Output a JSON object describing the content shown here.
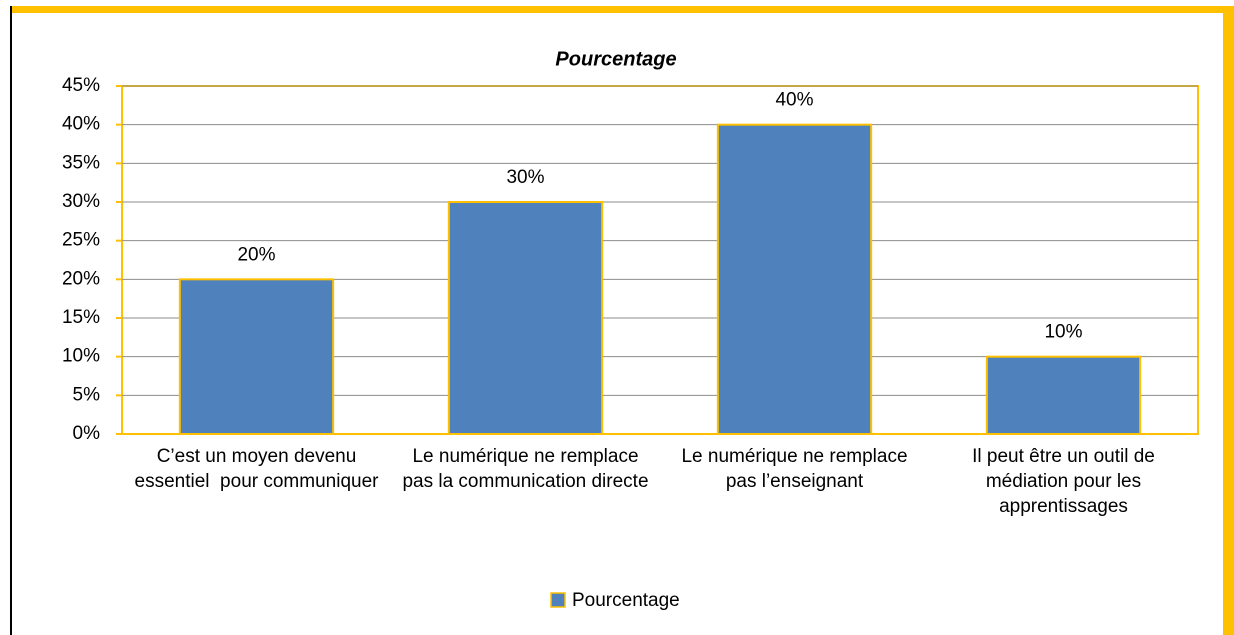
{
  "chart_data": {
    "type": "bar",
    "title": "Pourcentage",
    "categories": [
      "C’est un moyen devenu essentiel  pour communiquer",
      "Le numérique ne remplace pas la communication directe",
      "Le numérique ne remplace pas l’enseignant",
      "Il peut être un outil de médiation pour les apprentissages"
    ],
    "series": [
      {
        "name": "Pourcentage",
        "color": "#4f81bd",
        "values": [
          20,
          30,
          40,
          10
        ],
        "value_labels": [
          "20%",
          "30%",
          "40%",
          "10%"
        ]
      }
    ],
    "ylim": [
      0,
      45
    ],
    "yticks": [
      {
        "value": 0,
        "label": "0%"
      },
      {
        "value": 5,
        "label": "5%"
      },
      {
        "value": 10,
        "label": "10%"
      },
      {
        "value": 15,
        "label": "15%"
      },
      {
        "value": 20,
        "label": "20%"
      },
      {
        "value": 25,
        "label": "25%"
      },
      {
        "value": 30,
        "label": "30%"
      },
      {
        "value": 35,
        "label": "35%"
      },
      {
        "value": 40,
        "label": "40%"
      },
      {
        "value": 45,
        "label": "45%"
      }
    ],
    "grid": true,
    "legend": "bottom"
  }
}
